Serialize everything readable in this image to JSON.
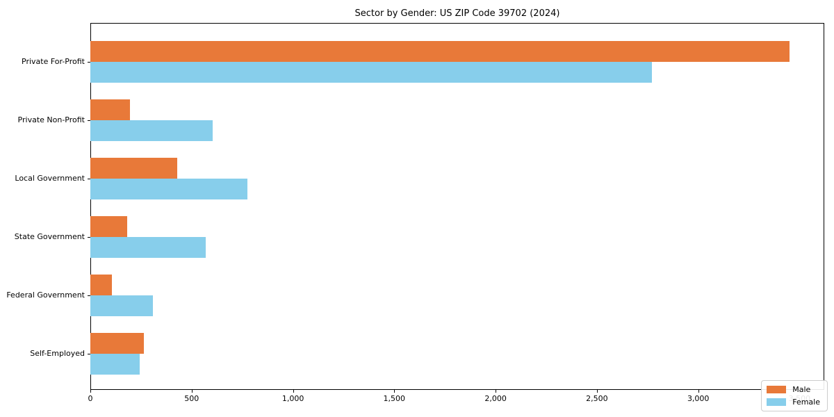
{
  "chart_data": {
    "type": "bar",
    "orientation": "horizontal",
    "title": "Sector by Gender: US ZIP Code 39702 (2024)",
    "categories": [
      "Private For-Profit",
      "Private Non-Profit",
      "Local Government",
      "State Government",
      "Federal Government",
      "Self-Employed"
    ],
    "series": [
      {
        "name": "Male",
        "color": "#e87939",
        "values": [
          3450,
          195,
          430,
          180,
          105,
          265
        ]
      },
      {
        "name": "Female",
        "color": "#87ceeb",
        "values": [
          2770,
          605,
          775,
          570,
          310,
          245
        ]
      }
    ],
    "xlabel": "",
    "ylabel": "",
    "xlim": [
      0,
      3622
    ],
    "xticks": [
      0,
      500,
      1000,
      1500,
      2000,
      2500,
      3000,
      3500
    ],
    "xtick_labels": [
      "0",
      "500",
      "1,000",
      "1,500",
      "2,000",
      "2,500",
      "3,000",
      "3,500"
    ],
    "grid": false,
    "legend_position": "lower right",
    "frame": true
  }
}
